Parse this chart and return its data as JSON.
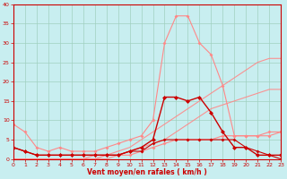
{
  "x": [
    0,
    1,
    2,
    3,
    4,
    5,
    6,
    7,
    8,
    9,
    10,
    11,
    12,
    13,
    14,
    15,
    16,
    17,
    18,
    19,
    20,
    21,
    22,
    23
  ],
  "line_rafales_high": [
    9,
    7,
    3,
    2,
    3,
    2,
    2,
    2,
    3,
    4,
    5,
    6,
    10,
    30,
    37,
    37,
    30,
    27,
    19,
    6,
    6,
    6,
    7,
    7
  ],
  "line_rafales_low": [
    0,
    0,
    0,
    0,
    0,
    0,
    0,
    0,
    1,
    1,
    1,
    2,
    3,
    4,
    5,
    5,
    5,
    5,
    6,
    6,
    6,
    6,
    6,
    7
  ],
  "line_moy_high": [
    3,
    2,
    1,
    1,
    1,
    1,
    1,
    1,
    1,
    1,
    2,
    3,
    5,
    16,
    16,
    15,
    16,
    12,
    7,
    3,
    3,
    1,
    1,
    1
  ],
  "line_moy_low": [
    3,
    2,
    1,
    1,
    1,
    1,
    1,
    1,
    1,
    1,
    2,
    2,
    4,
    5,
    5,
    5,
    5,
    5,
    5,
    5,
    3,
    2,
    1,
    0
  ],
  "line_diag1": [
    0,
    0,
    0,
    0,
    0,
    0,
    0,
    1,
    1,
    2,
    3,
    5,
    7,
    9,
    11,
    13,
    15,
    17,
    19,
    21,
    23,
    25,
    26,
    26
  ],
  "line_diag2": [
    0,
    0,
    0,
    0,
    0,
    0,
    0,
    0,
    0,
    1,
    2,
    3,
    4,
    5,
    7,
    9,
    11,
    13,
    14,
    15,
    16,
    17,
    18,
    18
  ],
  "bg_color": "#c8eef0",
  "grid_color": "#a0d0c0",
  "color_dark_red": "#cc0000",
  "color_light_pink": "#ff8888",
  "color_med_red": "#ee4444",
  "xlabel": "Vent moyen/en rafales ( km/h )",
  "ylim": [
    0,
    40
  ],
  "xlim": [
    0,
    23
  ],
  "yticks": [
    0,
    5,
    10,
    15,
    20,
    25,
    30,
    35,
    40
  ],
  "xticks": [
    0,
    1,
    2,
    3,
    4,
    5,
    6,
    7,
    8,
    9,
    10,
    11,
    12,
    13,
    14,
    15,
    16,
    17,
    18,
    19,
    20,
    21,
    22,
    23
  ]
}
